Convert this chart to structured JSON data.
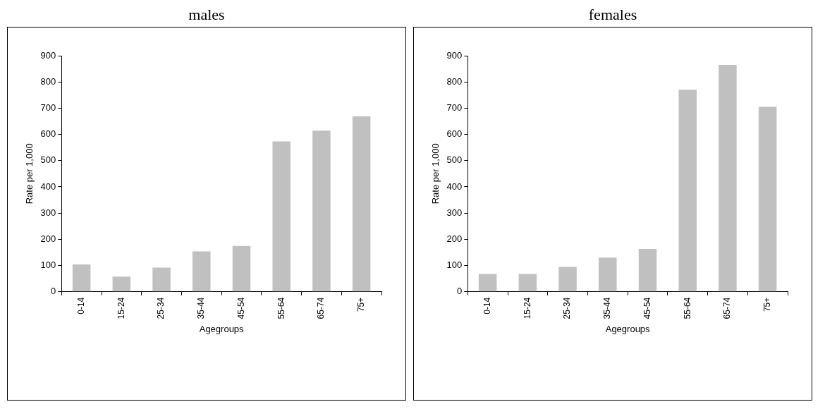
{
  "chart_data": [
    {
      "type": "bar",
      "title": "males",
      "xlabel": "Agegroups",
      "ylabel": "Rate per 1,000",
      "categories": [
        "0-14",
        "15-24",
        "25-34",
        "35-44",
        "45-54",
        "55-64",
        "65-74",
        "75+"
      ],
      "values": [
        104,
        58,
        92,
        154,
        175,
        573,
        614,
        669
      ],
      "color": "#c0c0c0",
      "ylim": [
        0,
        900
      ],
      "yticks": [
        0,
        100,
        200,
        300,
        400,
        500,
        600,
        700,
        800,
        900
      ],
      "grid": false,
      "legend": false
    },
    {
      "type": "bar",
      "title": "females",
      "xlabel": "Agegroups",
      "ylabel": "Rate per 1,000",
      "categories": [
        "0-14",
        "15-24",
        "25-34",
        "35-44",
        "45-54",
        "55-64",
        "65-74",
        "75+"
      ],
      "values": [
        68,
        68,
        95,
        130,
        163,
        770,
        865,
        705
      ],
      "color": "#c0c0c0",
      "ylim": [
        0,
        900
      ],
      "yticks": [
        0,
        100,
        200,
        300,
        400,
        500,
        600,
        700,
        800,
        900
      ],
      "grid": false,
      "legend": false
    }
  ]
}
